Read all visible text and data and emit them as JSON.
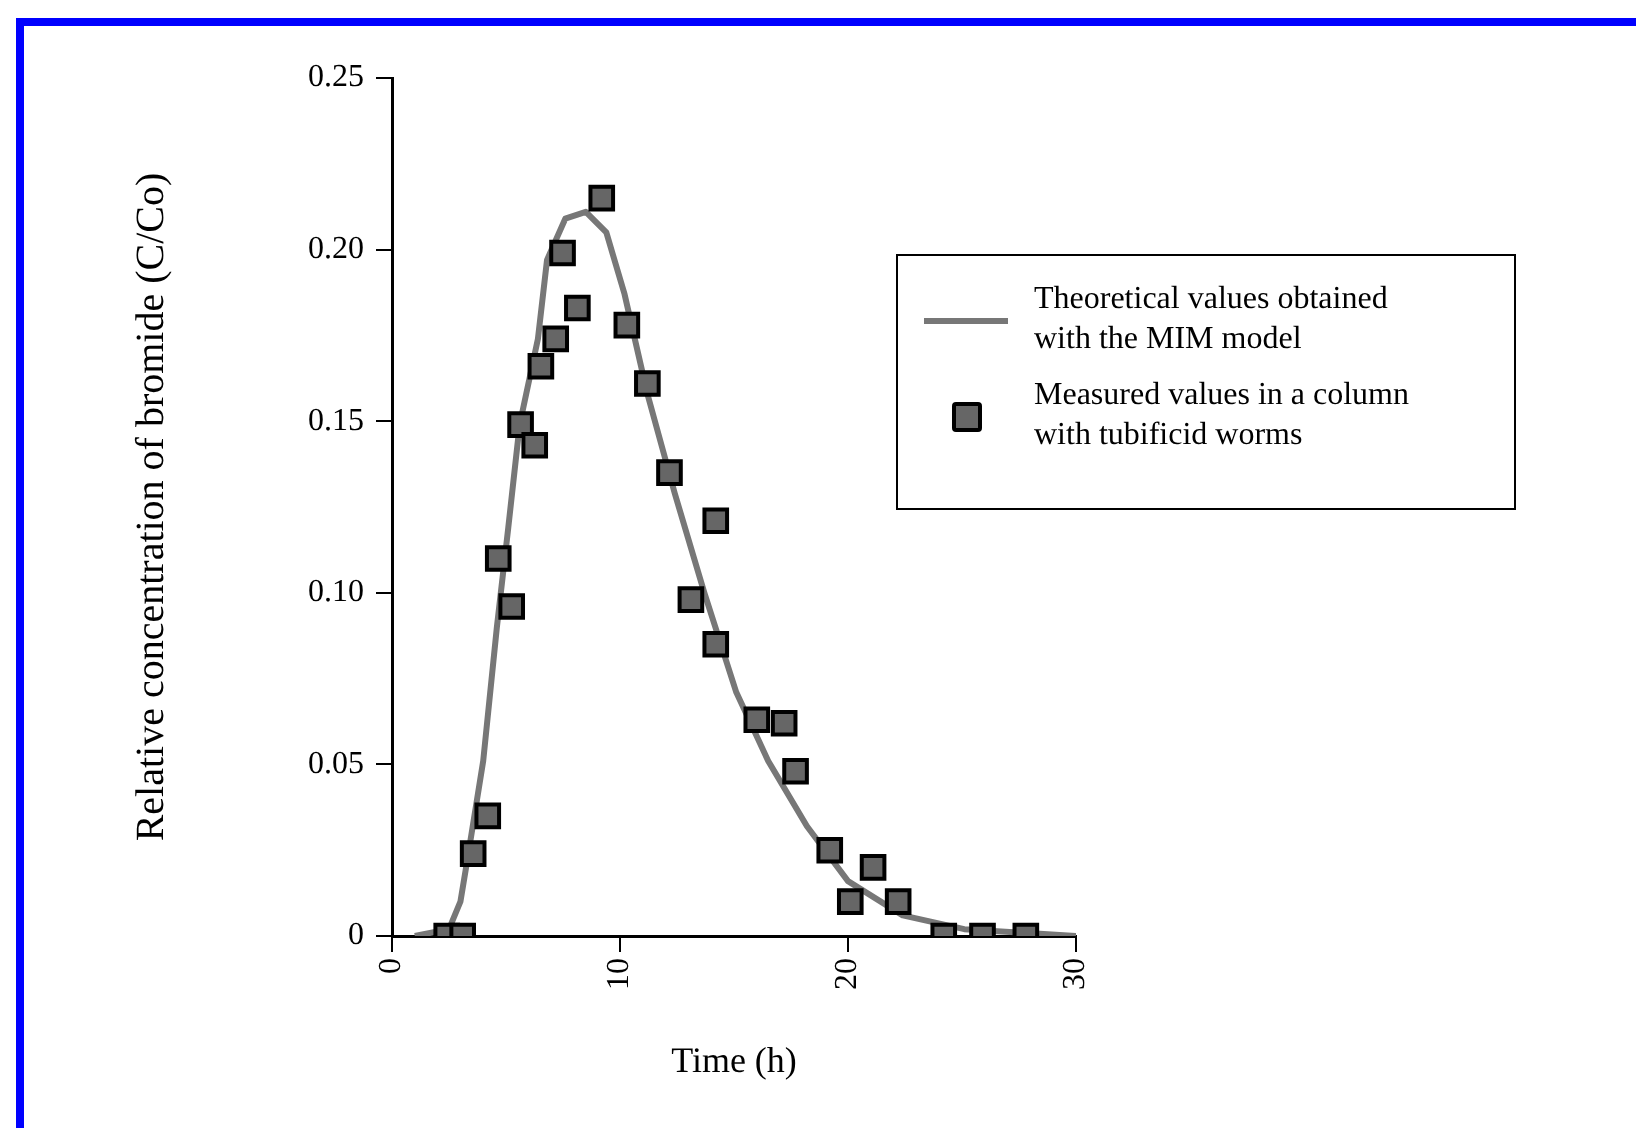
{
  "chart_data": {
    "type": "scatter",
    "xlabel": "Time (h)",
    "ylabel": "Relative concentration of bromide (C/Co)",
    "xlim": [
      0,
      30
    ],
    "xticks": [
      0,
      10,
      20,
      30
    ],
    "ylim": [
      0,
      0.25
    ],
    "yticks": [
      0,
      0.05,
      {
        "value": 0.1,
        "label": "0.10"
      },
      0.15,
      {
        "value": 0.2,
        "label": "0.20"
      },
      0.25
    ],
    "legend": "right",
    "series": [
      {
        "name": "Theoretical values obtained with the MIM model",
        "type": "line",
        "marker": "none",
        "color": "#777777",
        "x": [
          1,
          2.5,
          3,
          3.3,
          4,
          4.6,
          5.1,
          5.6,
          6.4,
          6.8,
          7.6,
          8.5,
          9.4,
          10.2,
          11.2,
          12.4,
          13.7,
          15.1,
          16.5,
          18.2,
          20,
          22.4,
          25.1,
          30
        ],
        "values": [
          0,
          0.002,
          0.01,
          0.022,
          0.051,
          0.09,
          0.119,
          0.149,
          0.174,
          0.197,
          0.209,
          0.211,
          0.205,
          0.187,
          0.158,
          0.129,
          0.1,
          0.071,
          0.051,
          0.032,
          0.016,
          0.006,
          0.002,
          0
        ]
      },
      {
        "name": "Measured values in a column with tubificid worms",
        "marker": "square",
        "color": "#666666",
        "x": [
          2.4,
          3.1,
          3.56,
          4.2,
          4.66,
          5.25,
          5.64,
          6.26,
          6.53,
          7.18,
          7.48,
          8.13,
          9.2,
          10.3,
          11.2,
          12.17,
          14.2,
          13.11,
          14.2,
          16.0,
          17.2,
          17.7,
          19.2,
          20.1,
          21.1,
          22.2,
          24.2,
          25.9,
          27.8
        ],
        "values": [
          0,
          0,
          0.024,
          0.035,
          0.11,
          0.096,
          0.149,
          0.143,
          0.166,
          0.174,
          0.199,
          0.183,
          0.215,
          0.178,
          0.161,
          0.135,
          0.121,
          0.098,
          0.085,
          0.063,
          0.062,
          0.048,
          0.025,
          0.01,
          0.02,
          0.01,
          0,
          0,
          0
        ]
      }
    ]
  }
}
